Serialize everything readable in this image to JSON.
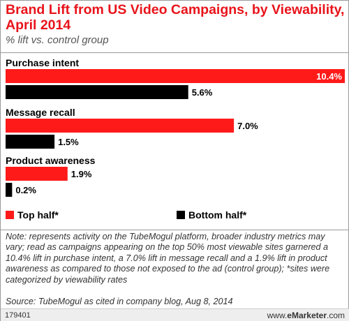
{
  "title": "Brand Lift from US Video Campaigns, by Viewability, April 2014",
  "subtitle": "% lift vs. control group",
  "colors": {
    "top_half": "#ff1a1a",
    "bottom_half": "#000000",
    "title": "#e8141b"
  },
  "chart_data": {
    "type": "bar",
    "orientation": "horizontal",
    "title": "Brand Lift from US Video Campaigns, by Viewability, April 2014",
    "subtitle": "% lift vs. control group",
    "categories": [
      "Purchase intent",
      "Message recall",
      "Product awareness"
    ],
    "series": [
      {
        "name": "Top half*",
        "color": "#ff1a1a",
        "values": [
          10.4,
          7.0,
          1.9
        ],
        "labels": [
          "10.4%",
          "7.0%",
          "1.9%"
        ]
      },
      {
        "name": "Bottom half*",
        "color": "#000000",
        "values": [
          5.6,
          1.5,
          0.2
        ],
        "labels": [
          "5.6%",
          "1.5%",
          "0.2%"
        ]
      }
    ],
    "xlim": [
      0,
      10.4
    ],
    "grid": false,
    "legend_position": "bottom"
  },
  "legend": {
    "top_half": "Top half*",
    "bottom_half": "Bottom half*"
  },
  "note": "Note: represents activity on the TubeMogul platform, broader industry metrics may vary; read as campaigns appearing on the top 50% most viewable sites garnered a 10.4% lift in purchase intent, a 7.0% lift in message recall and a 1.9% lift in product awareness as compared to those not exposed to the ad (control group); *sites were categorized by viewability rates",
  "source": "Source: TubeMogul as cited in company blog, Aug 8, 2014",
  "footer": {
    "chart_id": "179401",
    "site_prefix": "www.",
    "site_brand": "eMarketer",
    "site_suffix": ".com"
  }
}
